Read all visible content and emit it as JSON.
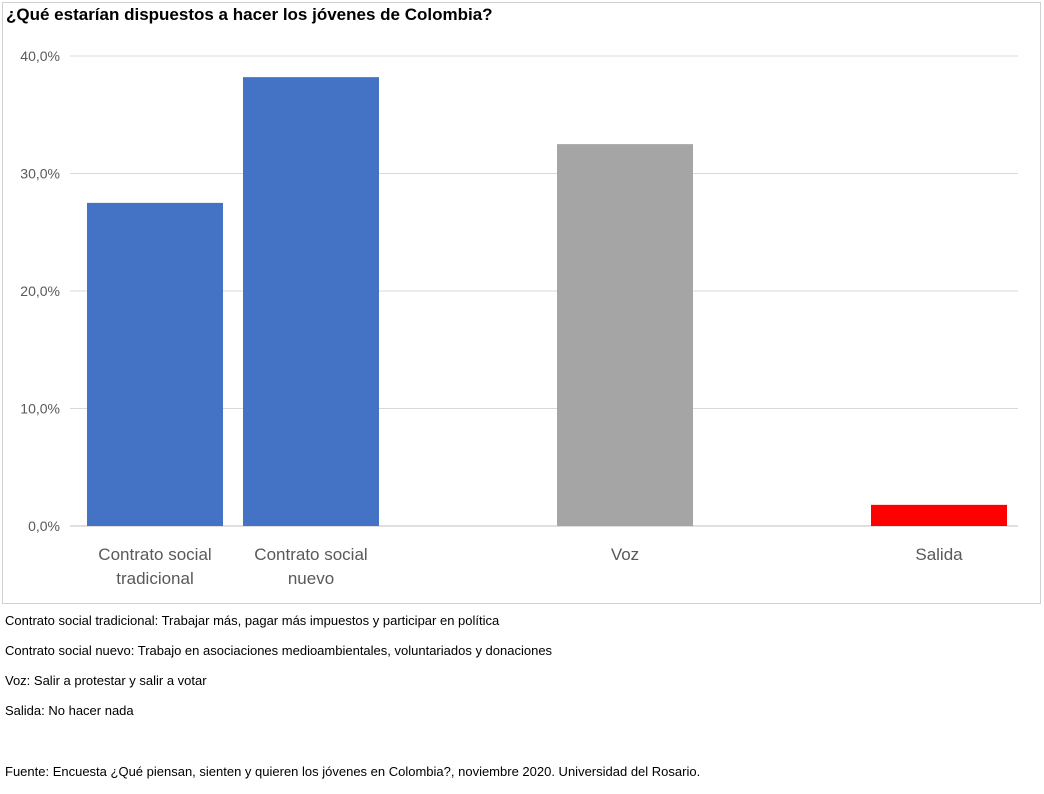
{
  "chart_data": {
    "type": "bar",
    "title": "¿Qué estarían dispuestos a hacer los jóvenes de Colombia?",
    "categories": [
      [
        "Contrato social",
        "tradicional"
      ],
      [
        "Contrato social",
        "nuevo"
      ],
      [
        "Voz"
      ],
      [
        "Salida"
      ]
    ],
    "values": [
      27.5,
      38.2,
      32.5,
      1.8
    ],
    "colors": [
      "#4472C4",
      "#4472C4",
      "#A5A5A5",
      "#FF0000"
    ],
    "ylim": [
      0,
      40
    ],
    "yticks": [
      0,
      10,
      20,
      30,
      40
    ],
    "ytick_labels": [
      "0,0%",
      "10,0%",
      "20,0%",
      "30,0%",
      "40,0%"
    ],
    "grid": true
  },
  "notes": [
    "Contrato social tradicional: Trabajar más, pagar más impuestos y participar en política",
    "Contrato social nuevo: Trabajo en asociaciones medioambientales, voluntariados y donaciones",
    "Voz: Salir a protestar y salir a votar",
    "Salida: No hacer nada"
  ],
  "source": "Fuente: Encuesta ¿Qué piensan, sienten y quieren los jóvenes en Colombia?, noviembre 2020. Universidad del Rosario."
}
